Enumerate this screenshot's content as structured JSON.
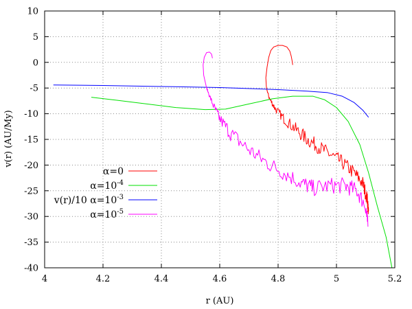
{
  "chart_data": {
    "type": "line",
    "xlabel": "r (AU)",
    "ylabel": "v(r) (AU/My)",
    "xlim": [
      4,
      5.2
    ],
    "ylim": [
      -40,
      10
    ],
    "xticks": [
      4,
      4.2,
      4.4,
      4.6,
      4.8,
      5,
      5.2
    ],
    "yticks": [
      -40,
      -35,
      -30,
      -25,
      -20,
      -15,
      -10,
      -5,
      0,
      5,
      10
    ],
    "grid": "dotted",
    "legend_position": "left-center",
    "series": [
      {
        "name": "α=0",
        "name_base": "α=0",
        "name_sup": "",
        "color": "#ff0000",
        "noise": 1.4,
        "points": [
          [
            4.85,
            -0.5
          ],
          [
            4.848,
            0.3
          ],
          [
            4.845,
            1.2
          ],
          [
            4.84,
            2.2
          ],
          [
            4.83,
            3.0
          ],
          [
            4.815,
            3.3
          ],
          [
            4.8,
            3.3
          ],
          [
            4.785,
            3.0
          ],
          [
            4.775,
            2.3
          ],
          [
            4.768,
            1.0
          ],
          [
            4.762,
            -1.0
          ],
          [
            4.758,
            -3.0
          ],
          [
            4.76,
            -5.0
          ],
          [
            4.77,
            -7.0
          ],
          [
            4.79,
            -9.0
          ],
          [
            4.82,
            -11.0
          ],
          [
            4.86,
            -13.0
          ],
          [
            4.9,
            -15.0
          ],
          [
            4.94,
            -16.5
          ],
          [
            4.98,
            -18.0
          ],
          [
            5.02,
            -19.5
          ],
          [
            5.06,
            -21.5
          ],
          [
            5.09,
            -23.5
          ],
          [
            5.105,
            -26.5
          ],
          [
            5.11,
            -29.0
          ]
        ]
      },
      {
        "name": "α=10-4",
        "name_base": "α=10",
        "name_sup": "-4",
        "color": "#00e000",
        "noise": 0,
        "points": [
          [
            4.16,
            -6.8
          ],
          [
            4.25,
            -7.4
          ],
          [
            4.35,
            -8.1
          ],
          [
            4.45,
            -8.8
          ],
          [
            4.55,
            -9.2
          ],
          [
            4.62,
            -9.1
          ],
          [
            4.7,
            -8.1
          ],
          [
            4.78,
            -7.1
          ],
          [
            4.85,
            -6.6
          ],
          [
            4.92,
            -6.6
          ],
          [
            4.96,
            -7.3
          ],
          [
            5.0,
            -8.8
          ],
          [
            5.04,
            -11.5
          ],
          [
            5.08,
            -16.0
          ],
          [
            5.11,
            -21.5
          ],
          [
            5.14,
            -28.0
          ],
          [
            5.17,
            -34.0
          ],
          [
            5.19,
            -40.0
          ]
        ]
      },
      {
        "name": "v(r)/10 α=10-3",
        "name_base": "v(r)/10 α=10",
        "name_sup": "-3",
        "color": "#0000ff",
        "noise": 0,
        "points": [
          [
            4.03,
            -4.4
          ],
          [
            4.2,
            -4.5
          ],
          [
            4.4,
            -4.7
          ],
          [
            4.6,
            -4.9
          ],
          [
            4.8,
            -5.3
          ],
          [
            4.9,
            -5.6
          ],
          [
            4.97,
            -5.9
          ],
          [
            5.02,
            -6.6
          ],
          [
            5.06,
            -7.8
          ],
          [
            5.09,
            -9.3
          ],
          [
            5.11,
            -10.7
          ]
        ]
      },
      {
        "name": "α=10-5",
        "name_base": "α=10",
        "name_sup": "-5",
        "color": "#ff00ff",
        "noise": 1.6,
        "points": [
          [
            4.575,
            0.8
          ],
          [
            4.572,
            1.6
          ],
          [
            4.565,
            2.0
          ],
          [
            4.555,
            1.9
          ],
          [
            4.547,
            1.0
          ],
          [
            4.543,
            -0.5
          ],
          [
            4.545,
            -2.5
          ],
          [
            4.555,
            -5.0
          ],
          [
            4.575,
            -8.0
          ],
          [
            4.6,
            -11.0
          ],
          [
            4.64,
            -14.0
          ],
          [
            4.7,
            -17.0
          ],
          [
            4.76,
            -19.5
          ],
          [
            4.82,
            -21.5
          ],
          [
            4.88,
            -23.5
          ],
          [
            4.92,
            -24.5
          ],
          [
            4.98,
            -24.0
          ],
          [
            5.03,
            -24.0
          ],
          [
            5.07,
            -25.0
          ],
          [
            5.1,
            -28.0
          ],
          [
            5.108,
            -32.0
          ]
        ]
      }
    ]
  }
}
